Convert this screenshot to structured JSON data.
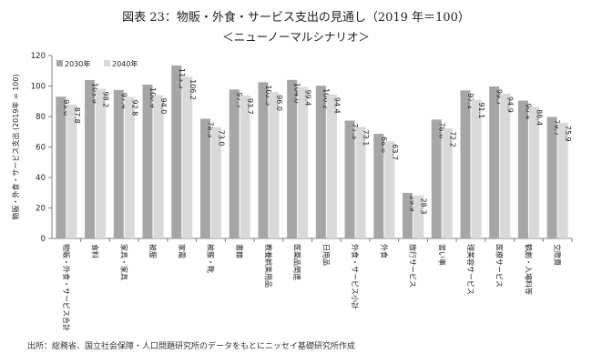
{
  "header": {
    "title": "図表 23：物販・外食・サービス支出の見通し（2019 年＝100）",
    "subtitle": "＜ニューノーマルシナリオ＞"
  },
  "source": "出所：総務省、国立社会保障・人口問題研究所のデータをもとにニッセイ基礎研究所作成",
  "colors": {
    "s2030": "#a6a6a6",
    "s2040": "#d9d9d9"
  },
  "chart_data": {
    "type": "bar",
    "title": "物販・外食・サービス支出の見通し（2019 年＝100）",
    "ylabel": "物販・外食・サービス支出 (2019年 = 100)",
    "xlabel": "",
    "ylim": [
      0,
      120
    ],
    "yticks": [
      0,
      20,
      40,
      60,
      80,
      100,
      120
    ],
    "legend_position": "top-left",
    "categories": [
      "物販・外食・サービス合計",
      "食料",
      "家具・家具",
      "被服",
      "家電",
      "被服・靴",
      "書籍",
      "教養娯楽用品",
      "医薬品関連",
      "日用品",
      "外食・サービス小計",
      "外食",
      "旅行サービス",
      "習い事",
      "理美容サービス",
      "医療サービス",
      "観劇・入場料等",
      "交際費"
    ],
    "series": [
      {
        "name": "2030年",
        "values": [
          93.0,
          103.9,
          97.4,
          100.9,
          113.5,
          78.5,
          97.7,
          102.5,
          104.0,
          100.2,
          77.3,
          68.6,
          29.9,
          78.0,
          97.1,
          99.7,
          90.4,
          79.7
        ]
      },
      {
        "name": "2040年",
        "values": [
          87.8,
          98.2,
          92.8,
          94.0,
          106.2,
          73.0,
          93.7,
          96.0,
          99.4,
          94.4,
          73.1,
          63.7,
          28.3,
          72.2,
          91.1,
          94.9,
          86.4,
          75.9
        ]
      }
    ]
  }
}
